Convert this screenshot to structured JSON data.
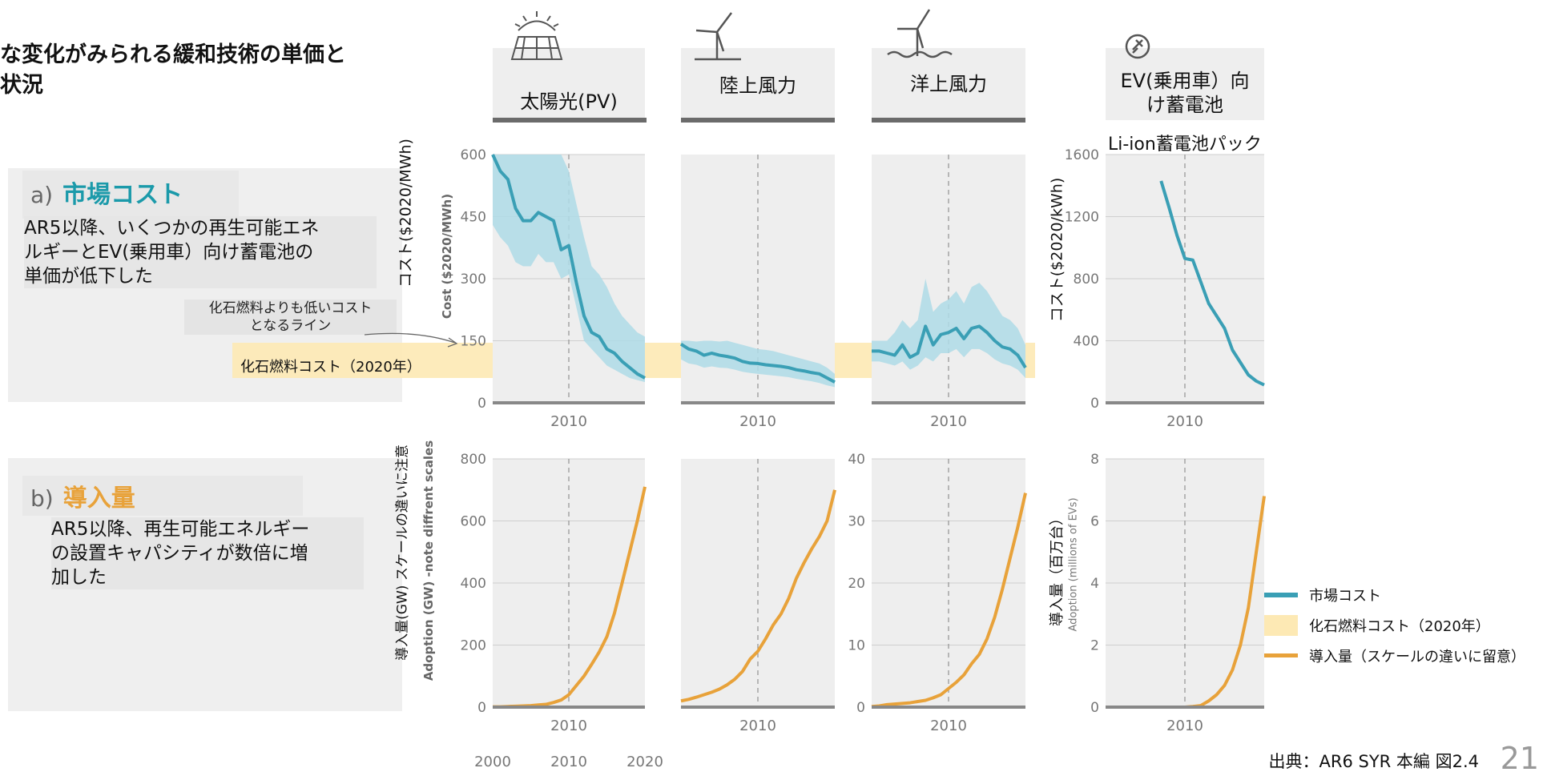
{
  "title_lines": [
    "な変化がみられる緩和技術の単価と",
    "状況"
  ],
  "section_a": {
    "letter": "a)",
    "title": "市場コスト",
    "desc_lines": [
      "AR5以降、いくつかの再生可能エネ",
      "ルギーとEV(乗用車）向け蓄電池の",
      "単価が低下した"
    ]
  },
  "section_b": {
    "letter": "b)",
    "title": "導入量",
    "desc_lines": [
      "AR5以降、再生可能エネルギー",
      "の設置キャパシティが数倍に増",
      "加した"
    ]
  },
  "annotation_lines": [
    "化石燃料よりも低いコスト",
    "となるライン"
  ],
  "fossil_label": "化石燃料コスト（2020年）",
  "tech_headers": [
    "太陽光(PV)",
    "陸上風力",
    "洋上風力",
    "EV(乗用車）向\nけ蓄電池"
  ],
  "battery_subtitle": "Li-ion蓄電池パック",
  "axis_labels": {
    "cost_ja": "コスト($2020/MWh)",
    "cost_en": "Cost ($2020/MWh)",
    "battery_cost_ja": "コスト($2020/kWh)",
    "adoption_ja": "導入量(GW) スケールの違いに注意",
    "adoption_en": "Adoption (GW) -note diffrent scales",
    "battery_adoption_ja": "導入量（百万台）",
    "battery_adoption_en": "Adoption (millions of EVs)"
  },
  "legend": [
    {
      "label": "市場コスト",
      "color": "#3a9fb5"
    },
    {
      "label": "化石燃料コスト（2020年）",
      "color": "#fde9b4"
    },
    {
      "label": "導入量（スケールの違いに留意）",
      "color": "#e8a23a"
    }
  ],
  "source": "出典：AR6 SYR 本編 図2.4",
  "page_number": "21",
  "colors": {
    "cost_line": "#3a9fb5",
    "cost_band": "#aedbe6",
    "fossil_band": "#fde9b4",
    "adoption_line": "#e8a23a",
    "panel_bg": "#eeeeee"
  },
  "chart_data": [
    {
      "id": "pv-cost",
      "type": "line",
      "ylim": [
        0,
        600
      ],
      "yticks": [
        0,
        150,
        300,
        450,
        600
      ],
      "xlim": [
        2000,
        2020
      ],
      "xticks": [
        2010
      ],
      "x": [
        2000,
        2001,
        2002,
        2003,
        2004,
        2005,
        2006,
        2007,
        2008,
        2009,
        2010,
        2011,
        2012,
        2013,
        2014,
        2015,
        2016,
        2017,
        2018,
        2019,
        2020
      ],
      "values": [
        600,
        560,
        540,
        470,
        440,
        440,
        460,
        450,
        440,
        370,
        380,
        290,
        210,
        170,
        160,
        130,
        120,
        100,
        85,
        70,
        60
      ],
      "band_upper": [
        600,
        600,
        600,
        600,
        600,
        600,
        600,
        600,
        600,
        600,
        560,
        480,
        400,
        330,
        310,
        280,
        240,
        210,
        190,
        170,
        160
      ],
      "band_lower": [
        430,
        400,
        380,
        340,
        330,
        330,
        360,
        340,
        340,
        300,
        310,
        230,
        150,
        130,
        110,
        90,
        80,
        70,
        60,
        55,
        50
      ]
    },
    {
      "id": "onshore-cost",
      "type": "line",
      "ylim": [
        0,
        600
      ],
      "xlim": [
        2000,
        2020
      ],
      "xticks": [
        2010
      ],
      "x": [
        2000,
        2001,
        2002,
        2003,
        2004,
        2005,
        2006,
        2007,
        2008,
        2009,
        2010,
        2011,
        2012,
        2013,
        2014,
        2015,
        2016,
        2017,
        2018,
        2019,
        2020
      ],
      "values": [
        142,
        130,
        125,
        115,
        120,
        115,
        112,
        108,
        100,
        96,
        95,
        92,
        90,
        88,
        85,
        80,
        77,
        73,
        70,
        60,
        50
      ],
      "band_upper": [
        150,
        150,
        148,
        150,
        150,
        148,
        150,
        145,
        140,
        135,
        130,
        128,
        125,
        120,
        115,
        110,
        105,
        100,
        95,
        85,
        70
      ],
      "band_lower": [
        105,
        95,
        92,
        85,
        88,
        85,
        84,
        80,
        75,
        72,
        70,
        68,
        66,
        64,
        62,
        58,
        55,
        52,
        48,
        42,
        38
      ]
    },
    {
      "id": "offshore-cost",
      "type": "line",
      "ylim": [
        0,
        600
      ],
      "xlim": [
        2000,
        2020
      ],
      "xticks": [
        2010
      ],
      "x": [
        2000,
        2001,
        2002,
        2003,
        2004,
        2005,
        2006,
        2007,
        2008,
        2009,
        2010,
        2011,
        2012,
        2013,
        2014,
        2015,
        2016,
        2017,
        2018,
        2019,
        2020
      ],
      "values": [
        125,
        125,
        120,
        115,
        140,
        110,
        120,
        185,
        140,
        165,
        170,
        180,
        155,
        180,
        185,
        170,
        150,
        135,
        130,
        115,
        85
      ],
      "band_upper": [
        150,
        150,
        150,
        170,
        200,
        180,
        200,
        300,
        220,
        240,
        250,
        270,
        240,
        280,
        290,
        270,
        240,
        210,
        200,
        180,
        140
      ],
      "band_lower": [
        100,
        100,
        95,
        90,
        100,
        80,
        90,
        110,
        100,
        120,
        120,
        130,
        110,
        130,
        130,
        120,
        105,
        95,
        90,
        80,
        60
      ]
    },
    {
      "id": "battery-cost",
      "type": "line",
      "ylim": [
        0,
        1600
      ],
      "yticks": [
        0,
        400,
        800,
        1200,
        1600
      ],
      "xlim": [
        2000,
        2020
      ],
      "xticks": [
        2010
      ],
      "x": [
        2007,
        2008,
        2009,
        2010,
        2011,
        2012,
        2013,
        2014,
        2015,
        2016,
        2017,
        2018,
        2019,
        2020
      ],
      "values": [
        1430,
        1260,
        1080,
        930,
        920,
        780,
        640,
        560,
        480,
        340,
        260,
        180,
        140,
        115
      ]
    },
    {
      "id": "pv-adoption",
      "type": "line",
      "ylim": [
        0,
        800
      ],
      "yticks": [
        0,
        200,
        400,
        600,
        800
      ],
      "xlim": [
        2000,
        2020
      ],
      "xticks": [
        2000,
        2010,
        2020
      ],
      "x": [
        2000,
        2001,
        2002,
        2003,
        2004,
        2005,
        2006,
        2007,
        2008,
        2009,
        2010,
        2011,
        2012,
        2013,
        2014,
        2015,
        2016,
        2017,
        2018,
        2019,
        2020
      ],
      "values": [
        1,
        1,
        2,
        3,
        4,
        5,
        7,
        9,
        15,
        23,
        40,
        70,
        100,
        138,
        178,
        227,
        303,
        400,
        500,
        600,
        710
      ]
    },
    {
      "id": "onshore-adoption",
      "type": "line",
      "ylim": [
        0,
        800
      ],
      "xlim": [
        2000,
        2020
      ],
      "xticks": [
        2010
      ],
      "x": [
        2000,
        2001,
        2002,
        2003,
        2004,
        2005,
        2006,
        2007,
        2008,
        2009,
        2010,
        2011,
        2012,
        2013,
        2014,
        2015,
        2016,
        2017,
        2018,
        2019,
        2020
      ],
      "values": [
        20,
        25,
        32,
        40,
        48,
        58,
        72,
        90,
        115,
        155,
        180,
        220,
        265,
        300,
        350,
        415,
        465,
        510,
        550,
        600,
        700
      ]
    },
    {
      "id": "offshore-adoption",
      "type": "line",
      "ylim": [
        0,
        40
      ],
      "yticks": [
        0,
        10,
        20,
        30,
        40
      ],
      "xlim": [
        2000,
        2020
      ],
      "xticks": [
        2010
      ],
      "x": [
        2000,
        2001,
        2002,
        2003,
        2004,
        2005,
        2006,
        2007,
        2008,
        2009,
        2010,
        2011,
        2012,
        2013,
        2014,
        2015,
        2016,
        2017,
        2018,
        2019,
        2020
      ],
      "values": [
        0.1,
        0.2,
        0.4,
        0.5,
        0.6,
        0.7,
        0.9,
        1.1,
        1.5,
        2.0,
        3.0,
        4.0,
        5.2,
        7.0,
        8.5,
        11.0,
        14.5,
        19.0,
        24.0,
        29.0,
        34.5
      ]
    },
    {
      "id": "battery-adoption",
      "type": "line",
      "ylim": [
        0,
        8
      ],
      "yticks": [
        0,
        2,
        4,
        6,
        8
      ],
      "xlim": [
        2000,
        2020
      ],
      "xticks": [
        2010
      ],
      "x": [
        2008,
        2009,
        2010,
        2011,
        2012,
        2013,
        2014,
        2015,
        2016,
        2017,
        2018,
        2019,
        2020
      ],
      "values": [
        0,
        0,
        0,
        0.02,
        0.05,
        0.2,
        0.4,
        0.7,
        1.2,
        2.0,
        3.2,
        5.0,
        6.8
      ]
    }
  ]
}
